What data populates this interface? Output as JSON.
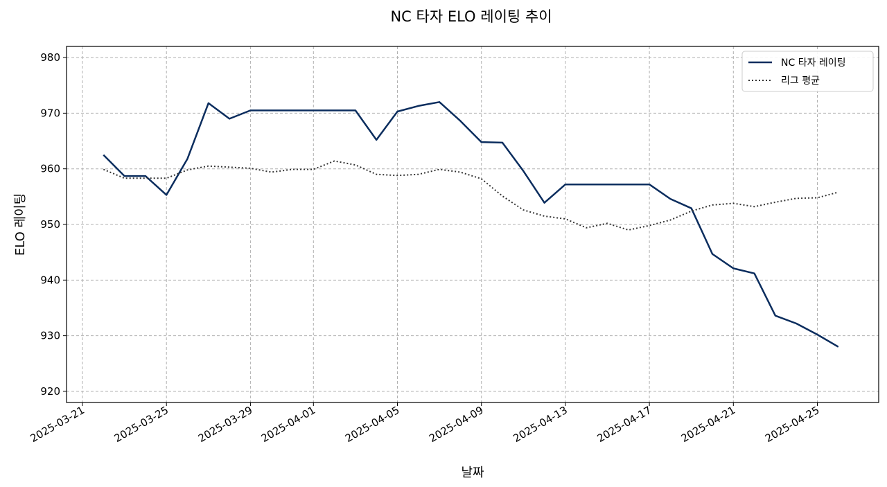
{
  "chart_data": {
    "type": "line",
    "title": "NC 타자 ELO 레이팅 추이",
    "xlabel": "날짜",
    "ylabel": "ELO 레이팅",
    "ylim": [
      918,
      982
    ],
    "xlim": [
      "2025-03-21",
      "2025-04-27"
    ],
    "yticks": [
      920,
      930,
      940,
      950,
      960,
      970,
      980
    ],
    "xticks": [
      "2025-03-21",
      "2025-03-25",
      "2025-03-29",
      "2025-04-01",
      "2025-04-05",
      "2025-04-09",
      "2025-04-13",
      "2025-04-17",
      "2025-04-21",
      "2025-04-25"
    ],
    "grid": true,
    "legend_position": "top-right",
    "series": [
      {
        "name": "NC 타자 레이팅",
        "color": "#0b2d5e",
        "style": "solid",
        "points": [
          [
            "2025-03-22",
            962.5
          ],
          [
            "2025-03-23",
            958.7
          ],
          [
            "2025-03-24",
            958.7
          ],
          [
            "2025-03-25",
            955.3
          ],
          [
            "2025-03-26",
            961.8
          ],
          [
            "2025-03-27",
            971.8
          ],
          [
            "2025-03-28",
            969.0
          ],
          [
            "2025-03-29",
            970.5
          ],
          [
            "2025-03-30",
            970.5
          ],
          [
            "2025-03-31",
            970.5
          ],
          [
            "2025-04-01",
            970.5
          ],
          [
            "2025-04-02",
            970.5
          ],
          [
            "2025-04-03",
            970.5
          ],
          [
            "2025-04-04",
            965.2
          ],
          [
            "2025-04-05",
            970.3
          ],
          [
            "2025-04-06",
            971.3
          ],
          [
            "2025-04-07",
            972.0
          ],
          [
            "2025-04-08",
            968.6
          ],
          [
            "2025-04-09",
            964.8
          ],
          [
            "2025-04-10",
            964.7
          ],
          [
            "2025-04-11",
            959.6
          ],
          [
            "2025-04-12",
            953.9
          ],
          [
            "2025-04-13",
            957.2
          ],
          [
            "2025-04-14",
            957.2
          ],
          [
            "2025-04-15",
            957.2
          ],
          [
            "2025-04-16",
            957.2
          ],
          [
            "2025-04-17",
            957.2
          ],
          [
            "2025-04-18",
            954.6
          ],
          [
            "2025-04-19",
            952.9
          ],
          [
            "2025-04-20",
            944.7
          ],
          [
            "2025-04-21",
            942.1
          ],
          [
            "2025-04-22",
            941.2
          ],
          [
            "2025-04-23",
            933.6
          ],
          [
            "2025-04-24",
            932.2
          ],
          [
            "2025-04-25",
            930.2
          ],
          [
            "2025-04-26",
            928.0
          ]
        ]
      },
      {
        "name": "리그 평균",
        "color": "#333333",
        "style": "dotted",
        "points": [
          [
            "2025-03-22",
            959.9
          ],
          [
            "2025-03-23",
            958.3
          ],
          [
            "2025-03-24",
            958.3
          ],
          [
            "2025-03-25",
            958.3
          ],
          [
            "2025-03-26",
            959.8
          ],
          [
            "2025-03-27",
            960.5
          ],
          [
            "2025-03-28",
            960.3
          ],
          [
            "2025-03-29",
            960.1
          ],
          [
            "2025-03-30",
            959.4
          ],
          [
            "2025-03-31",
            959.9
          ],
          [
            "2025-04-01",
            959.9
          ],
          [
            "2025-04-02",
            961.4
          ],
          [
            "2025-04-03",
            960.7
          ],
          [
            "2025-04-04",
            959.0
          ],
          [
            "2025-04-05",
            958.8
          ],
          [
            "2025-04-06",
            959.0
          ],
          [
            "2025-04-07",
            959.9
          ],
          [
            "2025-04-08",
            959.4
          ],
          [
            "2025-04-09",
            958.2
          ],
          [
            "2025-04-10",
            955.1
          ],
          [
            "2025-04-11",
            952.6
          ],
          [
            "2025-04-12",
            951.5
          ],
          [
            "2025-04-13",
            951.0
          ],
          [
            "2025-04-14",
            949.4
          ],
          [
            "2025-04-15",
            950.2
          ],
          [
            "2025-04-16",
            949.0
          ],
          [
            "2025-04-17",
            949.8
          ],
          [
            "2025-04-18",
            950.8
          ],
          [
            "2025-04-19",
            952.4
          ],
          [
            "2025-04-20",
            953.5
          ],
          [
            "2025-04-21",
            953.8
          ],
          [
            "2025-04-22",
            953.2
          ],
          [
            "2025-04-23",
            954.0
          ],
          [
            "2025-04-24",
            954.7
          ],
          [
            "2025-04-25",
            954.8
          ],
          [
            "2025-04-26",
            955.8
          ]
        ]
      }
    ]
  }
}
